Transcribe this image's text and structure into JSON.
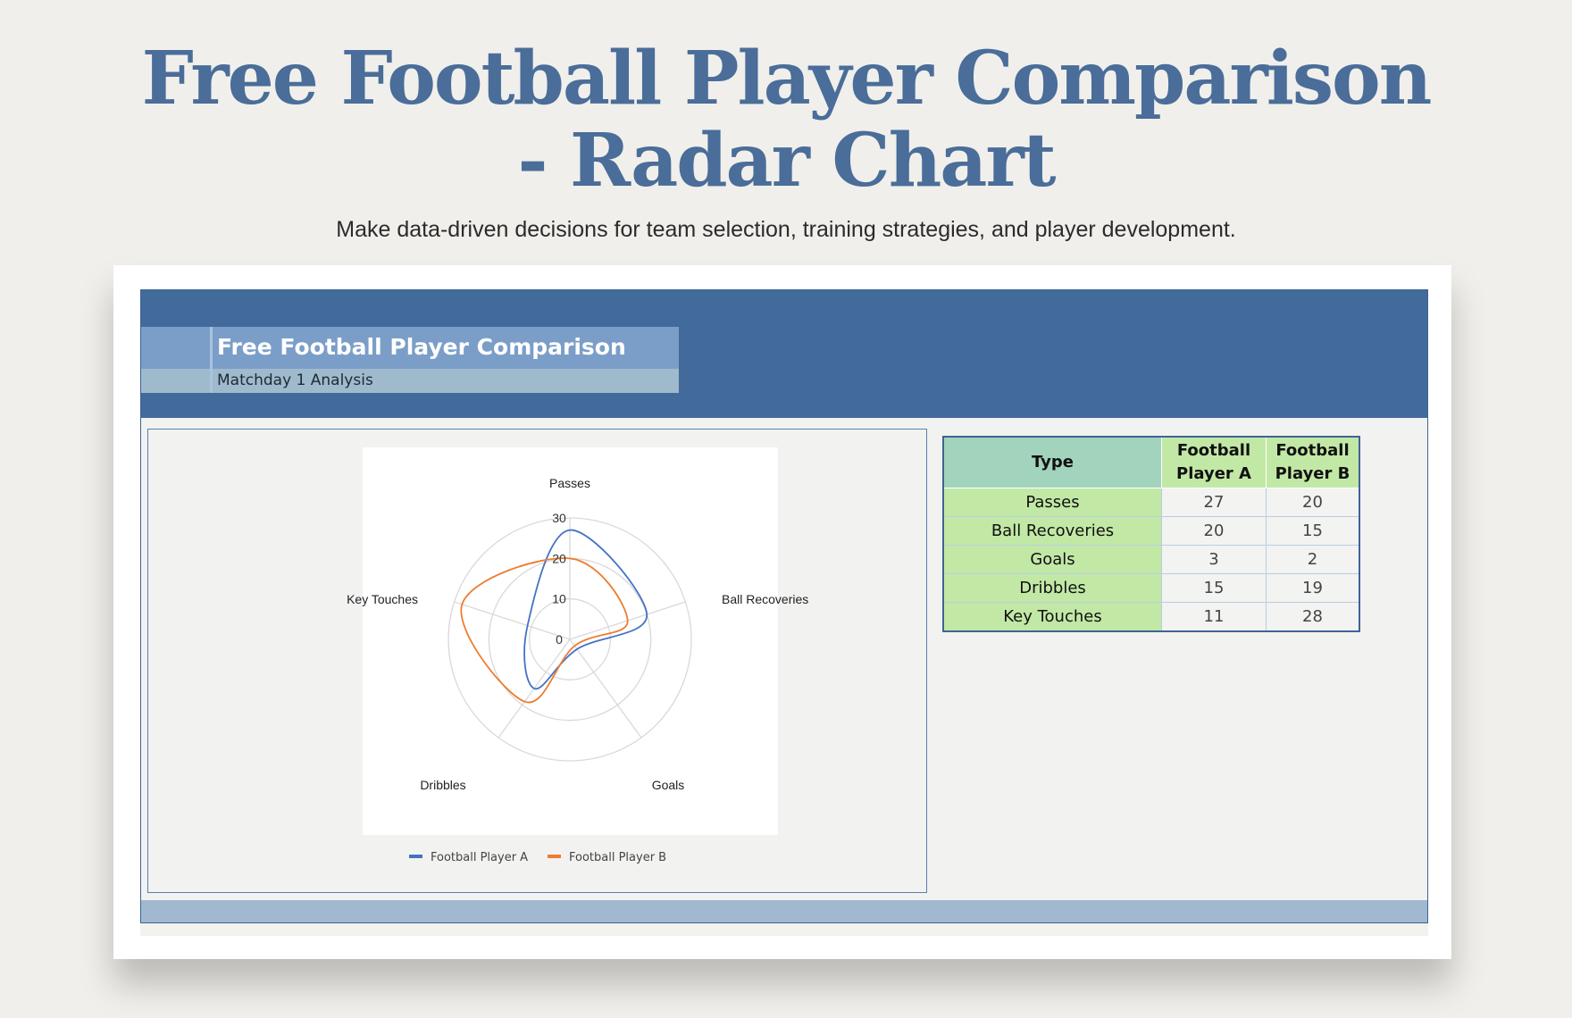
{
  "hero": {
    "title_line1": "Free Football Player Comparison",
    "title_line2": "- Radar Chart",
    "subtitle": "Make data-driven decisions for team selection, training strategies, and player development."
  },
  "sheet": {
    "title": "Free Football Player Comparison",
    "subtitle": "Matchday 1 Analysis"
  },
  "table": {
    "headers": [
      "Type",
      "Football Player A",
      "Football Player B"
    ],
    "header_a_line1": "Football",
    "header_a_line2": "Player A",
    "header_b_line1": "Football",
    "header_b_line2": "Player B",
    "rows": [
      {
        "type": "Passes",
        "a": "27",
        "b": "20"
      },
      {
        "type": "Ball Recoveries",
        "a": "20",
        "b": "15"
      },
      {
        "type": "Goals",
        "a": "3",
        "b": "2"
      },
      {
        "type": "Dribbles",
        "a": "15",
        "b": "19"
      },
      {
        "type": "Key Touches",
        "a": "11",
        "b": "28"
      }
    ]
  },
  "chart_data": {
    "type": "radar",
    "title": "",
    "categories": [
      "Passes",
      "Ball Recoveries",
      "Goals",
      "Dribbles",
      "Key Touches"
    ],
    "series": [
      {
        "name": "Football Player A",
        "values": [
          27,
          20,
          3,
          15,
          11
        ],
        "color": "#4472c4"
      },
      {
        "name": "Football Player B",
        "values": [
          20,
          15,
          2,
          19,
          28
        ],
        "color": "#ed7d31"
      }
    ],
    "r_ticks": [
      0,
      10,
      20,
      30
    ],
    "rlim": [
      0,
      30
    ],
    "grid": true,
    "legend": "bottom"
  },
  "colors": {
    "hero_title": "#4a6d99",
    "header_band": "#426a9b",
    "table_header": "#a1d3bd",
    "table_type": "#c2e8a6"
  }
}
